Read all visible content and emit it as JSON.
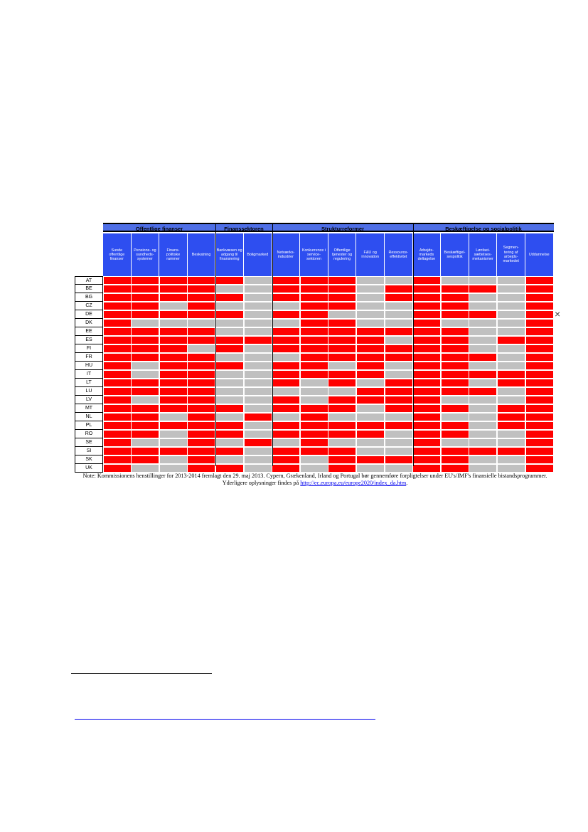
{
  "groups": [
    "Offentlige finanser",
    "Finanssektoren",
    "Strukturreformer",
    "Beskæftigelse og socialpolitik"
  ],
  "columns": [
    "Sunde offentlige finanser",
    "Pensions- og sundheds- systemer",
    "Finans- politiske rammer",
    "Beskatning",
    "Bankvæsen og adgang til finansiering",
    "Boligmarked",
    "Netværks- industrier",
    "Konkurrence i service- sektoren",
    "Offentlige tjenester og regulering",
    "F&U og innovation",
    "Ressource- effektivitet",
    "Arbejds- markeds deltagelse",
    "Beskæftigel- sespolitik",
    "Lønfast- sættelses- mekanismer",
    "Segmen- tering af arbejds- markedet",
    "Uddannelse"
  ],
  "countries": [
    "AT",
    "BE",
    "BG",
    "CZ",
    "DE",
    "DK",
    "EE",
    "ES",
    "FI",
    "FR",
    "HU",
    "IT",
    "LT",
    "LU",
    "LV",
    "MT",
    "NL",
    "PL",
    "RO",
    "SE",
    "SI",
    "SK",
    "UK"
  ],
  "matrix": [
    "RRRRRGRRRGGRGGGR",
    "RRRRGGRRRGRRRRGR",
    "RRRRRGRRRGRRRGGR",
    "RRGRGGGRRGGRRGGR",
    "RRRRRGRRGGGRRRGR",
    "RGGGGGGRRGGRGGGR",
    "RRRRGGRRRRRRRGGR",
    "RRRRRRRRRRGRRGRR",
    "RRRGRGRRRRRRRGGR",
    "RRRRGGGRRRRRRRGR",
    "RGRRRGRRGRGRRGGR",
    "RGRRGGRRRRGRRRRR",
    "RRRRGGRGRGRRRGRR",
    "RRRRGGGGGRRRRRGR",
    "RGRRGGRGRRRRGGGR",
    "RRRRRGRRRGRRRGRR",
    "RRGRGRGRGGGRGGRR",
    "RRRRRGRRRRRRRGRR",
    "RRGRRGRRRRGRRGGR",
    "RGGRGRGRGGGRGGGR",
    "RRRRRGRRRGGRRRRR",
    "RRGRGGRGRRRRRGGR",
    "RGGRRGRGRGGRRGGR"
  ],
  "note": {
    "text": "Note: Kommissionens henstillinger for 2013-2014 fremlagt den 29. maj 2013. Cypern, Grækenland, Irland og Portugal bør gennemføre forpligtelser under EU's/IMF's finansielle bistandsprogrammer. Yderligere oplysninger findes på",
    "link": "http://ec.europa.eu/europe2020/index_da.htm",
    "end": "."
  },
  "close_icon": "×",
  "colors": {
    "red": "#ff0000",
    "grey": "#c0c0c0",
    "header_blue": "#2e4ef0",
    "group_blue": "#4f6fe6"
  }
}
